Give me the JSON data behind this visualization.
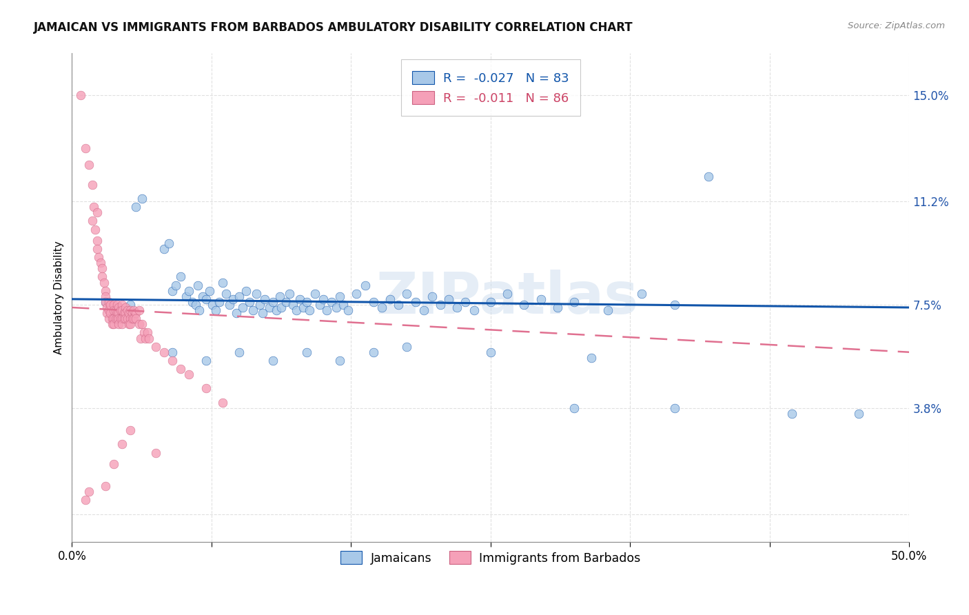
{
  "title": "JAMAICAN VS IMMIGRANTS FROM BARBADOS AMBULATORY DISABILITY CORRELATION CHART",
  "source": "Source: ZipAtlas.com",
  "ylabel": "Ambulatory Disability",
  "yticks": [
    0.0,
    0.038,
    0.075,
    0.112,
    0.15
  ],
  "ytick_labels": [
    "",
    "3.8%",
    "7.5%",
    "11.2%",
    "15.0%"
  ],
  "xlim": [
    0.0,
    0.5
  ],
  "ylim": [
    -0.01,
    0.165
  ],
  "color_jamaican": "#a8c8e8",
  "color_barbados": "#f5a0b8",
  "trendline_jamaican_color": "#1155aa",
  "trendline_barbados_color": "#e07090",
  "watermark": "ZIPatlas",
  "jamaican_R": -0.027,
  "jamaican_N": 83,
  "barbados_R": -0.011,
  "barbados_N": 86,
  "jamaican_trend_start_y": 0.077,
  "jamaican_trend_end_y": 0.074,
  "barbados_trend_start_y": 0.074,
  "barbados_trend_end_y": 0.058,
  "jamaican_scatter": [
    [
      0.02,
      0.076
    ],
    [
      0.035,
      0.075
    ],
    [
      0.038,
      0.11
    ],
    [
      0.042,
      0.113
    ],
    [
      0.055,
      0.095
    ],
    [
      0.058,
      0.097
    ],
    [
      0.06,
      0.08
    ],
    [
      0.062,
      0.082
    ],
    [
      0.065,
      0.085
    ],
    [
      0.068,
      0.078
    ],
    [
      0.07,
      0.08
    ],
    [
      0.072,
      0.076
    ],
    [
      0.074,
      0.075
    ],
    [
      0.075,
      0.082
    ],
    [
      0.076,
      0.073
    ],
    [
      0.078,
      0.078
    ],
    [
      0.08,
      0.077
    ],
    [
      0.082,
      0.08
    ],
    [
      0.084,
      0.075
    ],
    [
      0.086,
      0.073
    ],
    [
      0.088,
      0.076
    ],
    [
      0.09,
      0.083
    ],
    [
      0.092,
      0.079
    ],
    [
      0.094,
      0.075
    ],
    [
      0.096,
      0.077
    ],
    [
      0.098,
      0.072
    ],
    [
      0.1,
      0.078
    ],
    [
      0.102,
      0.074
    ],
    [
      0.104,
      0.08
    ],
    [
      0.106,
      0.076
    ],
    [
      0.108,
      0.073
    ],
    [
      0.11,
      0.079
    ],
    [
      0.112,
      0.075
    ],
    [
      0.114,
      0.072
    ],
    [
      0.115,
      0.077
    ],
    [
      0.118,
      0.074
    ],
    [
      0.12,
      0.076
    ],
    [
      0.122,
      0.073
    ],
    [
      0.124,
      0.078
    ],
    [
      0.125,
      0.074
    ],
    [
      0.128,
      0.076
    ],
    [
      0.13,
      0.079
    ],
    [
      0.132,
      0.075
    ],
    [
      0.134,
      0.073
    ],
    [
      0.136,
      0.077
    ],
    [
      0.138,
      0.074
    ],
    [
      0.14,
      0.076
    ],
    [
      0.142,
      0.073
    ],
    [
      0.145,
      0.079
    ],
    [
      0.148,
      0.075
    ],
    [
      0.15,
      0.077
    ],
    [
      0.152,
      0.073
    ],
    [
      0.155,
      0.076
    ],
    [
      0.158,
      0.074
    ],
    [
      0.16,
      0.078
    ],
    [
      0.162,
      0.075
    ],
    [
      0.165,
      0.073
    ],
    [
      0.17,
      0.079
    ],
    [
      0.175,
      0.082
    ],
    [
      0.18,
      0.076
    ],
    [
      0.185,
      0.074
    ],
    [
      0.19,
      0.077
    ],
    [
      0.195,
      0.075
    ],
    [
      0.2,
      0.079
    ],
    [
      0.205,
      0.076
    ],
    [
      0.21,
      0.073
    ],
    [
      0.215,
      0.078
    ],
    [
      0.22,
      0.075
    ],
    [
      0.225,
      0.077
    ],
    [
      0.23,
      0.074
    ],
    [
      0.235,
      0.076
    ],
    [
      0.24,
      0.073
    ],
    [
      0.25,
      0.076
    ],
    [
      0.26,
      0.079
    ],
    [
      0.27,
      0.075
    ],
    [
      0.28,
      0.077
    ],
    [
      0.29,
      0.074
    ],
    [
      0.3,
      0.076
    ],
    [
      0.32,
      0.073
    ],
    [
      0.34,
      0.079
    ],
    [
      0.36,
      0.075
    ],
    [
      0.38,
      0.121
    ]
  ],
  "jamaican_scatter_outliers": [
    [
      0.3,
      0.038
    ],
    [
      0.36,
      0.038
    ],
    [
      0.43,
      0.036
    ],
    [
      0.47,
      0.036
    ],
    [
      0.31,
      0.056
    ],
    [
      0.25,
      0.058
    ],
    [
      0.2,
      0.06
    ],
    [
      0.18,
      0.058
    ],
    [
      0.16,
      0.055
    ],
    [
      0.14,
      0.058
    ],
    [
      0.12,
      0.055
    ],
    [
      0.1,
      0.058
    ],
    [
      0.08,
      0.055
    ],
    [
      0.06,
      0.058
    ]
  ],
  "barbados_scatter": [
    [
      0.005,
      0.15
    ],
    [
      0.008,
      0.131
    ],
    [
      0.01,
      0.125
    ],
    [
      0.012,
      0.118
    ],
    [
      0.012,
      0.105
    ],
    [
      0.013,
      0.11
    ],
    [
      0.014,
      0.102
    ],
    [
      0.015,
      0.108
    ],
    [
      0.015,
      0.098
    ],
    [
      0.015,
      0.095
    ],
    [
      0.016,
      0.092
    ],
    [
      0.017,
      0.09
    ],
    [
      0.018,
      0.088
    ],
    [
      0.018,
      0.085
    ],
    [
      0.019,
      0.083
    ],
    [
      0.02,
      0.08
    ],
    [
      0.02,
      0.078
    ],
    [
      0.02,
      0.076
    ],
    [
      0.021,
      0.074
    ],
    [
      0.021,
      0.072
    ],
    [
      0.022,
      0.076
    ],
    [
      0.022,
      0.073
    ],
    [
      0.022,
      0.07
    ],
    [
      0.023,
      0.075
    ],
    [
      0.023,
      0.072
    ],
    [
      0.024,
      0.07
    ],
    [
      0.024,
      0.068
    ],
    [
      0.025,
      0.075
    ],
    [
      0.025,
      0.073
    ],
    [
      0.025,
      0.07
    ],
    [
      0.025,
      0.068
    ],
    [
      0.026,
      0.073
    ],
    [
      0.026,
      0.07
    ],
    [
      0.027,
      0.075
    ],
    [
      0.027,
      0.072
    ],
    [
      0.027,
      0.07
    ],
    [
      0.028,
      0.074
    ],
    [
      0.028,
      0.072
    ],
    [
      0.028,
      0.07
    ],
    [
      0.028,
      0.068
    ],
    [
      0.029,
      0.073
    ],
    [
      0.029,
      0.07
    ],
    [
      0.03,
      0.075
    ],
    [
      0.03,
      0.073
    ],
    [
      0.03,
      0.07
    ],
    [
      0.03,
      0.068
    ],
    [
      0.031,
      0.072
    ],
    [
      0.031,
      0.07
    ],
    [
      0.032,
      0.074
    ],
    [
      0.032,
      0.072
    ],
    [
      0.032,
      0.07
    ],
    [
      0.033,
      0.073
    ],
    [
      0.033,
      0.07
    ],
    [
      0.034,
      0.072
    ],
    [
      0.034,
      0.068
    ],
    [
      0.035,
      0.073
    ],
    [
      0.035,
      0.07
    ],
    [
      0.035,
      0.068
    ],
    [
      0.036,
      0.072
    ],
    [
      0.036,
      0.07
    ],
    [
      0.037,
      0.073
    ],
    [
      0.037,
      0.07
    ],
    [
      0.038,
      0.072
    ],
    [
      0.038,
      0.07
    ],
    [
      0.04,
      0.073
    ],
    [
      0.04,
      0.068
    ],
    [
      0.041,
      0.063
    ],
    [
      0.042,
      0.068
    ],
    [
      0.043,
      0.065
    ],
    [
      0.044,
      0.063
    ],
    [
      0.045,
      0.065
    ],
    [
      0.046,
      0.063
    ],
    [
      0.05,
      0.06
    ],
    [
      0.055,
      0.058
    ],
    [
      0.06,
      0.055
    ],
    [
      0.065,
      0.052
    ],
    [
      0.07,
      0.05
    ],
    [
      0.08,
      0.045
    ],
    [
      0.09,
      0.04
    ],
    [
      0.01,
      0.008
    ],
    [
      0.03,
      0.025
    ],
    [
      0.05,
      0.022
    ],
    [
      0.008,
      0.005
    ],
    [
      0.02,
      0.01
    ],
    [
      0.035,
      0.03
    ],
    [
      0.025,
      0.018
    ]
  ]
}
